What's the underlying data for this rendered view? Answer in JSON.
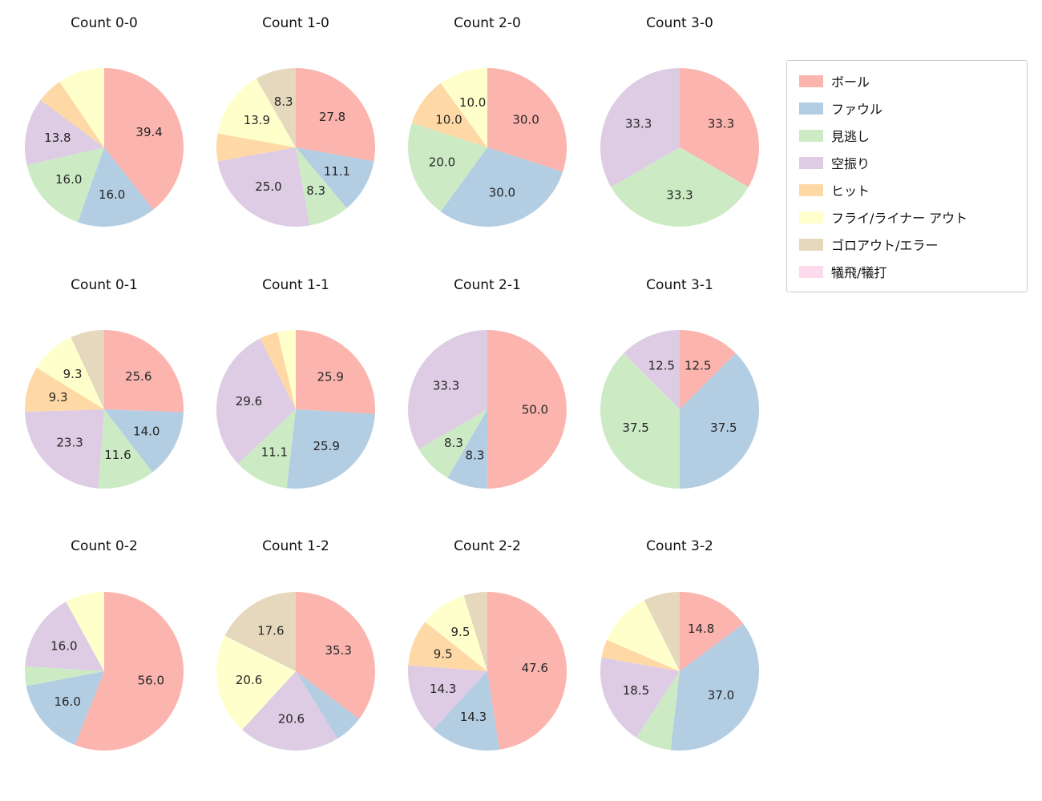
{
  "page": {
    "background": "#ffffff"
  },
  "legend": {
    "items": [
      {
        "label": "ボール",
        "color": "#fbb4ae"
      },
      {
        "label": "ファウル",
        "color": "#b3cde3"
      },
      {
        "label": "見逃し",
        "color": "#ccebc5"
      },
      {
        "label": "空振り",
        "color": "#decbe4"
      },
      {
        "label": "ヒット",
        "color": "#fed9a6"
      },
      {
        "label": "フライ/ライナー アウト",
        "color": "#ffffcc"
      },
      {
        "label": "ゴロアウト/エラー",
        "color": "#e5d8bd"
      },
      {
        "label": "犠飛/犠打",
        "color": "#fddaec"
      }
    ]
  },
  "chart_data": {
    "type": "pie",
    "grid": {
      "rows": 3,
      "cols": 4
    },
    "start_angle_deg": 90,
    "direction": "clockwise",
    "units": "percent",
    "pies": [
      {
        "title": "Count 0-0",
        "slices": [
          {
            "category": "ボール",
            "value": 39.4,
            "label": "39.4"
          },
          {
            "category": "ファウル",
            "value": 16.0,
            "label": "16.0"
          },
          {
            "category": "見逃し",
            "value": 16.0,
            "label": "16.0"
          },
          {
            "category": "空振り",
            "value": 13.8,
            "label": "13.8"
          },
          {
            "category": "ヒット",
            "value": 5.3,
            "label": null
          },
          {
            "category": "フライ/ライナー アウト",
            "value": 9.5,
            "label": null
          }
        ]
      },
      {
        "title": "Count 1-0",
        "slices": [
          {
            "category": "ボール",
            "value": 27.8,
            "label": "27.8"
          },
          {
            "category": "ファウル",
            "value": 11.1,
            "label": "11.1"
          },
          {
            "category": "見逃し",
            "value": 8.3,
            "label": "8.3"
          },
          {
            "category": "空振り",
            "value": 25.0,
            "label": "25.0"
          },
          {
            "category": "ヒット",
            "value": 5.6,
            "label": null
          },
          {
            "category": "フライ/ライナー アウト",
            "value": 13.9,
            "label": "13.9"
          },
          {
            "category": "ゴロアウト/エラー",
            "value": 8.3,
            "label": "8.3"
          }
        ]
      },
      {
        "title": "Count 2-0",
        "slices": [
          {
            "category": "ボール",
            "value": 30.0,
            "label": "30.0"
          },
          {
            "category": "ファウル",
            "value": 30.0,
            "label": "30.0"
          },
          {
            "category": "見逃し",
            "value": 20.0,
            "label": "20.0"
          },
          {
            "category": "ヒット",
            "value": 10.0,
            "label": "10.0"
          },
          {
            "category": "フライ/ライナー アウト",
            "value": 10.0,
            "label": "10.0"
          }
        ]
      },
      {
        "title": "Count 3-0",
        "slices": [
          {
            "category": "ボール",
            "value": 33.3,
            "label": "33.3"
          },
          {
            "category": "見逃し",
            "value": 33.3,
            "label": "33.3"
          },
          {
            "category": "空振り",
            "value": 33.3,
            "label": "33.3"
          }
        ]
      },
      {
        "title": "Count 0-1",
        "slices": [
          {
            "category": "ボール",
            "value": 25.6,
            "label": "25.6"
          },
          {
            "category": "ファウル",
            "value": 14.0,
            "label": "14.0"
          },
          {
            "category": "見逃し",
            "value": 11.6,
            "label": "11.6"
          },
          {
            "category": "空振り",
            "value": 23.3,
            "label": "23.3"
          },
          {
            "category": "ヒット",
            "value": 9.3,
            "label": "9.3"
          },
          {
            "category": "フライ/ライナー アウト",
            "value": 9.3,
            "label": "9.3"
          },
          {
            "category": "ゴロアウト/エラー",
            "value": 6.9,
            "label": null
          }
        ]
      },
      {
        "title": "Count 1-1",
        "slices": [
          {
            "category": "ボール",
            "value": 25.9,
            "label": "25.9"
          },
          {
            "category": "ファウル",
            "value": 25.9,
            "label": "25.9"
          },
          {
            "category": "見逃し",
            "value": 11.1,
            "label": "11.1"
          },
          {
            "category": "空振り",
            "value": 29.6,
            "label": "29.6"
          },
          {
            "category": "ヒット",
            "value": 3.7,
            "label": null
          },
          {
            "category": "フライ/ライナー アウト",
            "value": 3.7,
            "label": null
          }
        ]
      },
      {
        "title": "Count 2-1",
        "slices": [
          {
            "category": "ボール",
            "value": 50.0,
            "label": "50.0"
          },
          {
            "category": "ファウル",
            "value": 8.3,
            "label": "8.3"
          },
          {
            "category": "見逃し",
            "value": 8.3,
            "label": "8.3"
          },
          {
            "category": "空振り",
            "value": 33.3,
            "label": "33.3"
          }
        ]
      },
      {
        "title": "Count 3-1",
        "slices": [
          {
            "category": "ボール",
            "value": 12.5,
            "label": "12.5"
          },
          {
            "category": "ファウル",
            "value": 37.5,
            "label": "37.5"
          },
          {
            "category": "見逃し",
            "value": 37.5,
            "label": "37.5"
          },
          {
            "category": "空振り",
            "value": 12.5,
            "label": "12.5"
          }
        ]
      },
      {
        "title": "Count 0-2",
        "slices": [
          {
            "category": "ボール",
            "value": 56.0,
            "label": "56.0"
          },
          {
            "category": "ファウル",
            "value": 16.0,
            "label": "16.0"
          },
          {
            "category": "見逃し",
            "value": 4.0,
            "label": null
          },
          {
            "category": "空振り",
            "value": 16.0,
            "label": "16.0"
          },
          {
            "category": "フライ/ライナー アウト",
            "value": 8.0,
            "label": null
          }
        ]
      },
      {
        "title": "Count 1-2",
        "slices": [
          {
            "category": "ボール",
            "value": 35.3,
            "label": "35.3"
          },
          {
            "category": "ファウル",
            "value": 5.9,
            "label": null
          },
          {
            "category": "空振り",
            "value": 20.6,
            "label": "20.6"
          },
          {
            "category": "フライ/ライナー アウト",
            "value": 20.6,
            "label": "20.6"
          },
          {
            "category": "ゴロアウト/エラー",
            "value": 17.6,
            "label": "17.6"
          }
        ]
      },
      {
        "title": "Count 2-2",
        "slices": [
          {
            "category": "ボール",
            "value": 47.6,
            "label": "47.6"
          },
          {
            "category": "ファウル",
            "value": 14.3,
            "label": "14.3"
          },
          {
            "category": "空振り",
            "value": 14.3,
            "label": "14.3"
          },
          {
            "category": "ヒット",
            "value": 9.5,
            "label": "9.5"
          },
          {
            "category": "フライ/ライナー アウト",
            "value": 9.5,
            "label": "9.5"
          },
          {
            "category": "ゴロアウト/エラー",
            "value": 4.8,
            "label": null
          }
        ]
      },
      {
        "title": "Count 3-2",
        "slices": [
          {
            "category": "ボール",
            "value": 14.8,
            "label": "14.8"
          },
          {
            "category": "ファウル",
            "value": 37.0,
            "label": "37.0"
          },
          {
            "category": "見逃し",
            "value": 7.4,
            "label": null
          },
          {
            "category": "空振り",
            "value": 18.5,
            "label": "18.5"
          },
          {
            "category": "ヒット",
            "value": 3.7,
            "label": null
          },
          {
            "category": "フライ/ライナー アウト",
            "value": 11.1,
            "label": null
          },
          {
            "category": "ゴロアウト/エラー",
            "value": 7.4,
            "label": null
          }
        ]
      }
    ]
  }
}
